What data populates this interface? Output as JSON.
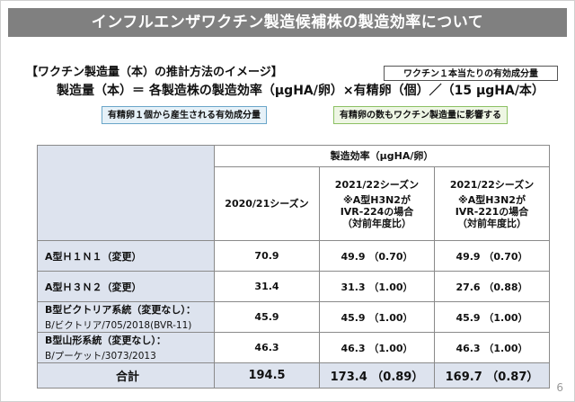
{
  "title": "インフルエンザワクチン製造候補株の製造効率について",
  "heading": "【ワクチン製造量（本）の推計方法のイメージ】",
  "formula": "製造量（本）＝ 各製造株の製造効率（μgHA/卵）×有精卵（個）／（15 μgHA/本）",
  "callouts": {
    "top": "ワクチン１本当たりの有効成分量",
    "blue": "有精卵１個から産生される有効成分量",
    "green": "有精卵の数もワクチン製造量に影響する"
  },
  "table": {
    "group_header": "製造効率（μgHA/卵）",
    "columns": [
      {
        "label": "2020/21シーズン"
      },
      {
        "label": "2021/22シーズン",
        "line2": "※A型H3N2が",
        "line3": "IVR-224の場合",
        "line4": "（対前年度比）"
      },
      {
        "label": "2021/22シーズン",
        "line2": "※A型H3N2が",
        "line3": "IVR-221の場合",
        "line4": "（対前年度比）"
      }
    ],
    "rows": [
      {
        "label": "A型Ｈ１Ｎ１（変更）",
        "sub": "",
        "values": [
          "70.9",
          "49.9 （0.70）",
          "49.9 （0.70）"
        ]
      },
      {
        "label": "A型Ｈ３Ｎ２（変更）",
        "sub": "",
        "values": [
          "31.4",
          "31.3 （1.00）",
          "27.6 （0.88）"
        ]
      },
      {
        "label": "B型ビクトリア系統（変更なし）：",
        "sub": "B/ビクトリア/705/2018(BVR-11)",
        "values": [
          "45.9",
          "45.9 （1.00）",
          "45.9 （1.00）"
        ]
      },
      {
        "label": "B型山形系統（変更なし）：",
        "sub": "B/プーケット/3073/2013",
        "values": [
          "46.3",
          "46.3 （1.00）",
          "46.3 （1.00）"
        ]
      }
    ],
    "total": {
      "label": "合計",
      "values": [
        "194.5",
        "173.4 （0.89）",
        "169.7 （0.87）"
      ]
    }
  },
  "page_number": "6"
}
